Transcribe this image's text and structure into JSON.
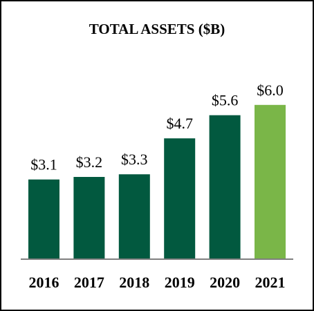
{
  "chart_data": {
    "type": "bar",
    "title": "TOTAL ASSETS ($B)",
    "categories": [
      "2016",
      "2017",
      "2018",
      "2019",
      "2020",
      "2021"
    ],
    "values": [
      3.1,
      3.2,
      3.3,
      4.7,
      5.6,
      6.0
    ],
    "data_labels": [
      "$3.1",
      "$3.2",
      "$3.3",
      "$4.7",
      "$5.6",
      "$6.0"
    ],
    "xlabel": "",
    "ylabel": "",
    "ylim": [
      0,
      6.5
    ],
    "grid": false,
    "legend": "none",
    "bar_color": "#02593f",
    "highlight_color": "#7ab648",
    "highlight_index": 5
  }
}
